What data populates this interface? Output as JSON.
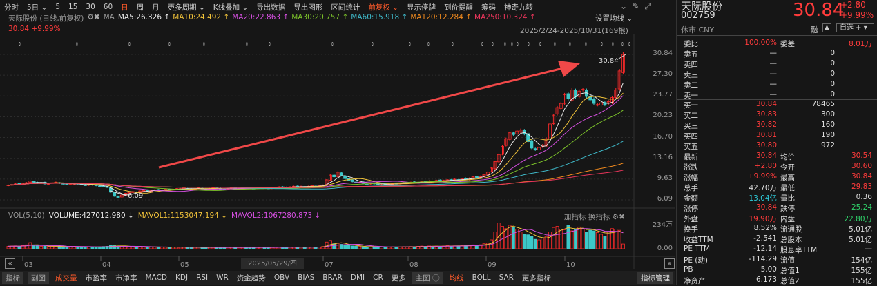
{
  "toolbar": {
    "items": [
      "分时",
      "5日 ⌄",
      "5",
      "15",
      "30",
      "60",
      "日",
      "周",
      "月",
      "更多周期 ⌄",
      "K线叠加 ⌄",
      "导出数据",
      "导出图形",
      "区间统计",
      "前复权 ⌄",
      "显示停牌",
      "到价提醒",
      "筹码",
      "神奇九转"
    ],
    "active": [
      "日",
      "前复权 ⌄"
    ]
  },
  "info": {
    "title": "天际股份 (日线,前复权)",
    "ma_label": "MA",
    "ma": [
      {
        "text": "MA5:26.326 ↑",
        "color": "#e8e8e8"
      },
      {
        "text": "MA10:24.492 ↑",
        "color": "#f0c23a"
      },
      {
        "text": "MA20:22.863 ↑",
        "color": "#d54fe0"
      },
      {
        "text": "MA30:20.757 ↑",
        "color": "#7cc22a"
      },
      {
        "text": "MA60:15.918 ↑",
        "color": "#3fb9c9"
      },
      {
        "text": "MA120:12.284 ↑",
        "color": "#f08a1e"
      },
      {
        "text": "MA250:10.324 ↑",
        "color": "#e8355a"
      }
    ],
    "price_change": "30.84 +9.99%",
    "set_ma": "设置均线 ⌄",
    "range": "2025/2/24-2025/10/31(169根)"
  },
  "colors": {
    "up": "#ff2a2a",
    "down": "#3cc8c8",
    "arrow": "#f04848"
  },
  "chart_data": {
    "type": "candlestick",
    "y_ticks": [
      "30.84",
      "27.30",
      "23.77",
      "20.23",
      "16.70",
      "13.16",
      "9.63",
      "6.09"
    ],
    "ylim": [
      6.09,
      30.84
    ],
    "x_ticks": [
      "03",
      "04",
      "05",
      "07",
      "08",
      "09",
      "10"
    ],
    "hover_date": "2025/05/29/四",
    "max_label": "30.84",
    "min_label": "6.09",
    "closes": [
      8.6,
      8.7,
      8.8,
      8.7,
      8.9,
      9.0,
      9.3,
      9.1,
      8.9,
      9.0,
      8.8,
      8.9,
      9.0,
      9.1,
      8.9,
      8.8,
      8.7,
      8.8,
      8.9,
      8.8,
      8.7,
      8.6,
      8.7,
      8.6,
      8.5,
      8.4,
      8.3,
      8.2,
      7.4,
      6.7,
      6.5,
      6.9,
      7.2,
      7.3,
      7.5,
      7.4,
      7.6,
      7.7,
      7.6,
      7.7,
      7.8,
      7.7,
      7.8,
      7.9,
      7.8,
      7.9,
      8.0,
      8.0,
      8.1,
      8.0,
      7.9,
      8.0,
      8.1,
      8.0,
      7.9,
      8.0,
      8.1,
      8.0,
      7.9,
      7.9,
      8.0,
      8.1,
      8.0,
      8.0,
      8.1,
      8.1,
      8.1,
      8.0,
      8.1,
      8.2,
      8.1,
      8.0,
      8.1,
      8.2,
      8.3,
      8.2,
      8.2,
      8.3,
      8.4,
      8.3,
      8.4,
      8.3,
      8.4,
      8.5,
      8.4,
      8.5,
      8.6,
      9.5,
      10.3,
      10.0,
      10.8,
      10.2,
      9.7,
      9.4,
      9.2,
      9.0,
      9.1,
      8.9,
      8.8,
      8.9,
      8.8,
      8.7,
      8.8,
      8.7,
      8.8,
      8.9,
      8.8,
      8.9,
      9.0,
      9.0,
      9.1,
      9.0,
      9.1,
      9.2,
      9.1,
      9.3,
      9.2,
      9.4,
      9.3,
      9.4,
      9.5,
      9.4,
      9.6,
      9.5,
      9.7,
      9.6,
      9.8,
      10.0,
      9.9,
      10.1,
      10.4,
      10.8,
      11.5,
      12.6,
      13.8,
      15.2,
      16.5,
      17.5,
      17.2,
      17.8,
      18.0,
      17.3,
      16.0,
      14.9,
      14.6,
      15.0,
      15.4,
      16.5,
      19.0,
      20.5,
      21.8,
      22.5,
      24.0,
      23.3,
      24.8,
      23.6,
      24.6,
      24.9,
      23.7,
      23.1,
      22.5,
      22.3,
      22.6,
      22.3,
      22.8,
      23.5,
      24.8,
      28.04,
      30.84
    ],
    "volume_wan": [
      22,
      24,
      26,
      22,
      30,
      35,
      55,
      30,
      25,
      22,
      24,
      20,
      22,
      24,
      20,
      19,
      18,
      20,
      22,
      18,
      17,
      16,
      18,
      15,
      16,
      17,
      20,
      22,
      30,
      28,
      25,
      22,
      20,
      18,
      17,
      16,
      18,
      17,
      16,
      15,
      16,
      15,
      14,
      15,
      14,
      15,
      16,
      14,
      13,
      12,
      12,
      13,
      12,
      11,
      12,
      12,
      11,
      12,
      11,
      11,
      12,
      12,
      11,
      11,
      12,
      12,
      12,
      11,
      12,
      13,
      12,
      11,
      12,
      13,
      14,
      13,
      13,
      14,
      15,
      14,
      15,
      14,
      15,
      16,
      15,
      16,
      20,
      60,
      75,
      45,
      50,
      40,
      35,
      30,
      25,
      22,
      20,
      18,
      17,
      18,
      16,
      15,
      16,
      15,
      16,
      17,
      16,
      17,
      18,
      18,
      20,
      18,
      22,
      24,
      20,
      25,
      22,
      24,
      22,
      25,
      28,
      24,
      26,
      25,
      28,
      30,
      32,
      35,
      30,
      36,
      45,
      50,
      80,
      150,
      230,
      200,
      180,
      210,
      190,
      175,
      150,
      130,
      125,
      110,
      85,
      80,
      95,
      110,
      150,
      190,
      200,
      175,
      170,
      210,
      160,
      175,
      195,
      180,
      150,
      165,
      160,
      145,
      130,
      110,
      155,
      180,
      175,
      165,
      42.7
    ],
    "vol_ticks": [
      "234万",
      "0.00"
    ]
  },
  "volume": {
    "label": "VOL(5,10)",
    "volume": "VOLUME:427012.980 ↓",
    "mavol1": "MAVOL1:1153047.194 ↓",
    "mavol2": "MAVOL2:1067280.873 ↓",
    "add": "加指标",
    "switch": "换指标"
  },
  "bottom": {
    "box1": "指标",
    "box2": "副图",
    "items": [
      "成交量",
      "市盈率",
      "市净率",
      "MACD",
      "KDJ",
      "RSI",
      "WR",
      "资金趋势",
      "OBV",
      "BIAS",
      "BRAR",
      "DMI",
      "CR",
      "更多"
    ],
    "main": "主图 ⓘ",
    "items2": [
      "均线",
      "BOLL",
      "SAR",
      "更多指标"
    ],
    "manage": "指标管理"
  },
  "quote": {
    "name": "天际股份",
    "code": "002759",
    "status": "休市 CNY",
    "price": "30.84",
    "change": "+2.80",
    "pct": "+9.99%",
    "rong": "融",
    "watch": "自选 +",
    "wb": {
      "l": "委比",
      "v": "100.00%",
      "l2": "委差",
      "v2": "8.01万"
    },
    "sells": [
      [
        "卖五",
        "—",
        "0"
      ],
      [
        "卖四",
        "—",
        "0"
      ],
      [
        "卖三",
        "—",
        "0"
      ],
      [
        "卖二",
        "—",
        "0"
      ],
      [
        "卖一",
        "—",
        "0"
      ]
    ],
    "buys": [
      [
        "买一",
        "30.84",
        "78465"
      ],
      [
        "买二",
        "30.83",
        "300"
      ],
      [
        "买三",
        "30.82",
        "160"
      ],
      [
        "买四",
        "30.81",
        "190"
      ],
      [
        "买五",
        "30.80",
        "972"
      ]
    ],
    "stats": [
      [
        "最新",
        "30.84",
        "red",
        "均价",
        "30.54",
        "red"
      ],
      [
        "涨跌",
        "+2.80",
        "red",
        "今开",
        "30.60",
        "red"
      ],
      [
        "涨幅",
        "+9.99%",
        "red",
        "最高",
        "30.84",
        "red"
      ],
      [
        "总手",
        "42.70万",
        "wht",
        "最低",
        "29.83",
        "red"
      ],
      [
        "金额",
        "13.04亿",
        "cyn",
        "量比",
        "0.36",
        "wht"
      ],
      [
        "涨停",
        "30.84",
        "red",
        "跌停",
        "25.24",
        "grn"
      ],
      [
        "外盘",
        "19.90万",
        "red",
        "内盘",
        "22.80万",
        "grn"
      ],
      [
        "换手",
        "8.52%",
        "wht",
        "流通股",
        "5.01亿",
        "wht"
      ],
      [
        "收益TTM",
        "-2.541",
        "wht",
        "总股本",
        "5.01亿",
        "wht"
      ],
      [
        "PE TTM",
        "-12.14",
        "wht",
        "股息率TTM",
        "—",
        "wht"
      ],
      [
        "PE (动)",
        "-114.29",
        "wht",
        "流值",
        "154亿",
        "wht"
      ],
      [
        "PB",
        "5.00",
        "wht",
        "总值1",
        "155亿",
        "wht"
      ],
      [
        "净资产",
        "6.173",
        "wht",
        "总值2",
        "155亿",
        "wht"
      ]
    ]
  }
}
